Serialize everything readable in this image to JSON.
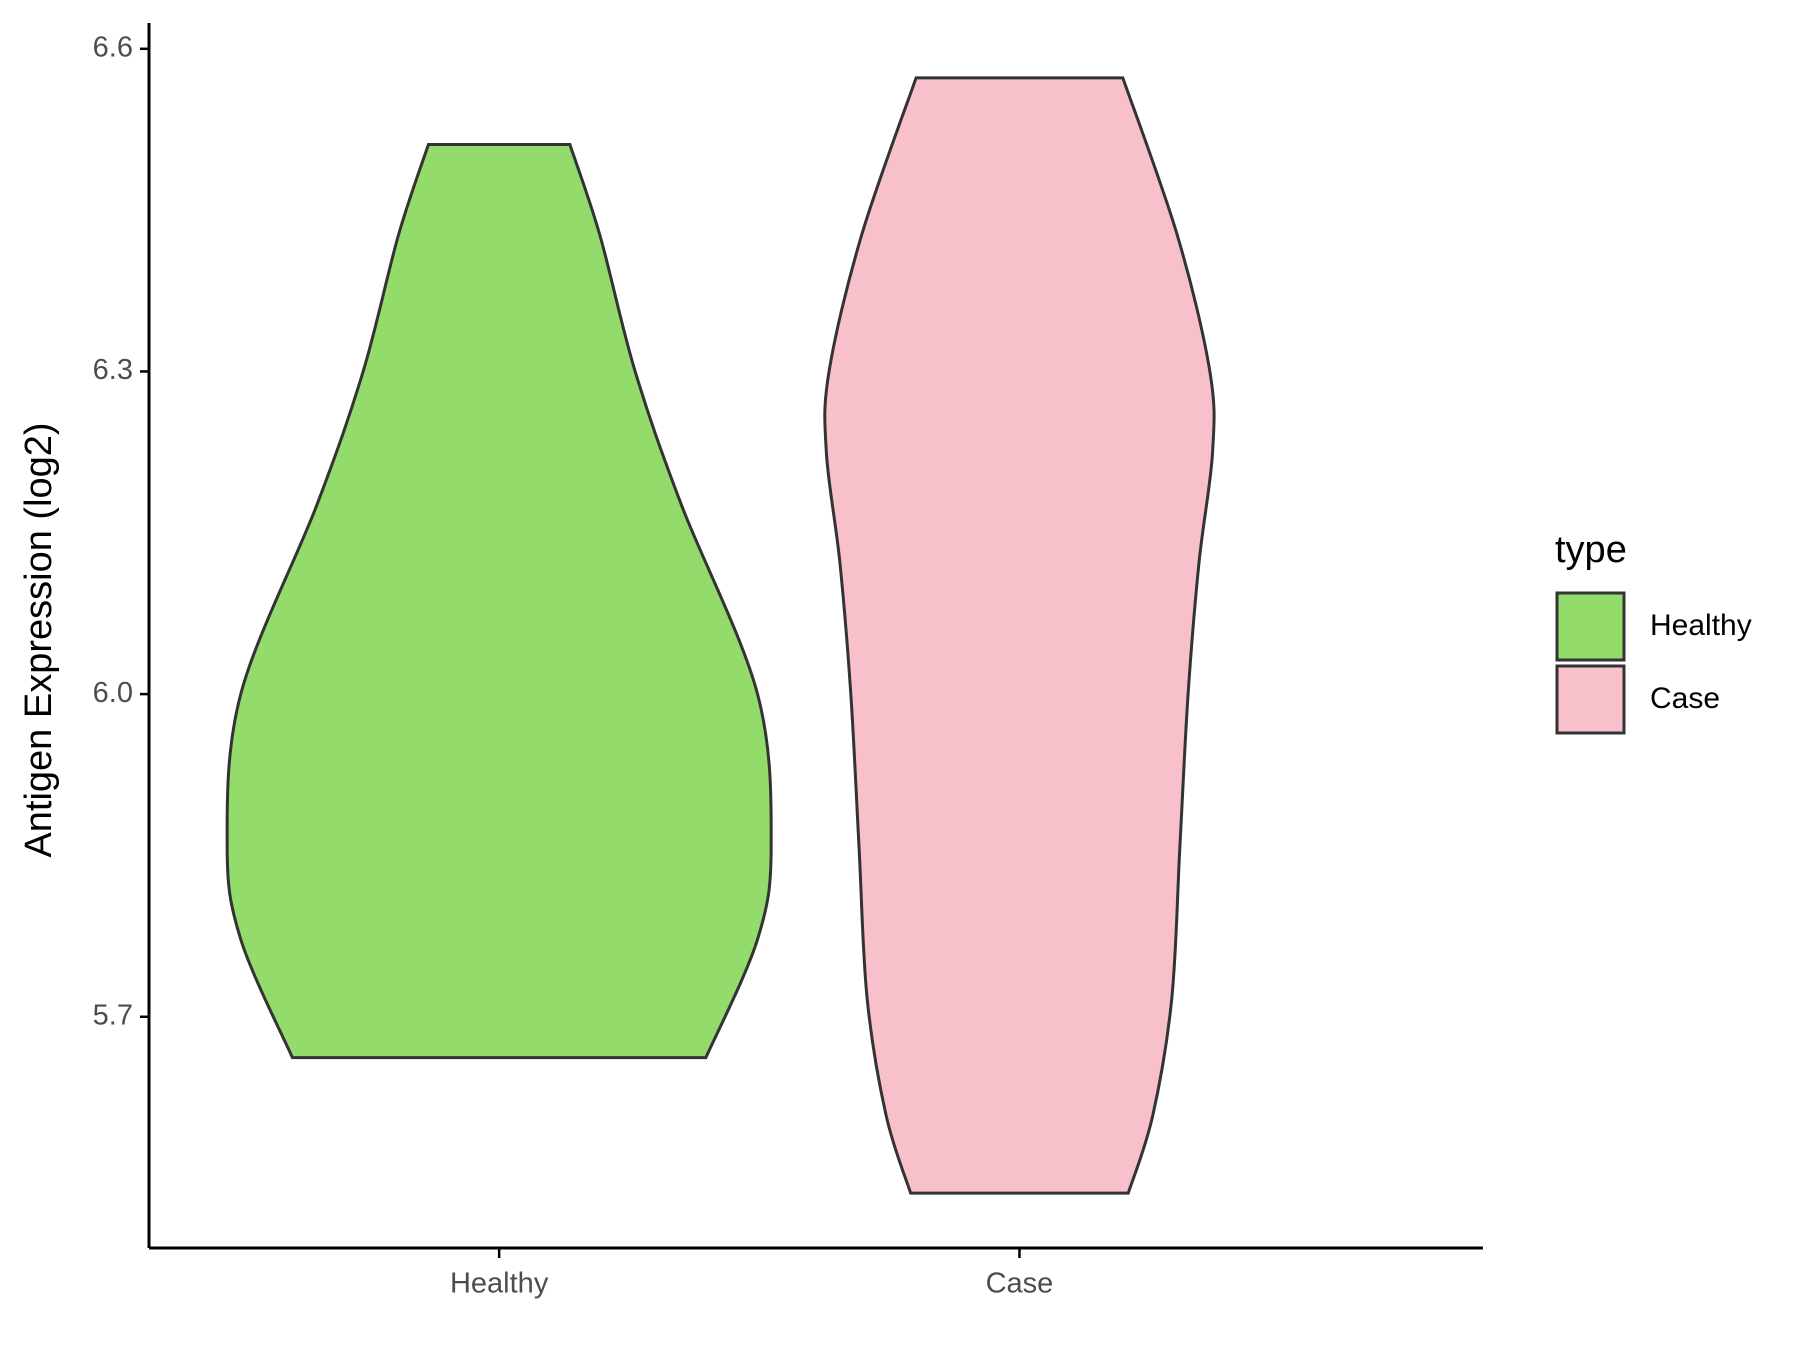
{
  "chart_data": {
    "type": "violin",
    "y_label": "Antigen Expression (log2)",
    "legend_title": "type",
    "legend_position": "right",
    "categories": [
      "Healthy",
      "Case"
    ],
    "ylim": [
      5.485,
      6.624
    ],
    "yticks": [
      5.7,
      {
        "value": 6,
        "label": "6.0"
      },
      6.3,
      6.6
    ],
    "series": [
      {
        "name": "Healthy",
        "color": "#93dc6b",
        "y": [
          6.511,
          6.427,
          6.3,
          6.176,
          6.0,
          5.859,
          5.772,
          5.662
        ],
        "density": [
          0.26,
          0.37,
          0.5,
          0.67,
          0.95,
          1.0,
          0.95,
          0.76
        ]
      },
      {
        "name": "Case",
        "color": "#f7c0cb",
        "y": [
          6.573,
          6.427,
          6.3,
          6.225,
          6.122,
          6.0,
          5.859,
          5.717,
          5.608,
          5.536
        ],
        "density": [
          0.38,
          0.58,
          0.7,
          0.71,
          0.66,
          0.62,
          0.59,
          0.56,
          0.49,
          0.4
        ]
      }
    ]
  }
}
